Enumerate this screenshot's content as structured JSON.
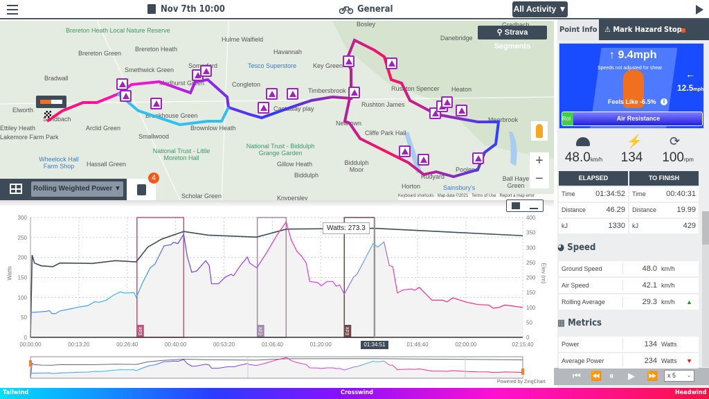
{
  "header": {
    "date": "Nov 7th 10:00",
    "activity_type": "General",
    "filter_label": "All Activity ▼"
  },
  "map": {
    "places": [
      "Brereton Heath Local Nature Reserve",
      "Brereton Green",
      "Brereton Heath",
      "Hulme Walfield",
      "Havannah",
      "Bosley",
      "Danebridge",
      "Gradbach",
      "Smethwick Green",
      "Medhurst Green",
      "Somerford",
      "Congleton",
      "Tesco Superstore",
      "Key Green",
      "Timbersbrook",
      "Rushton Spencer",
      "Heaton",
      "Rushton James",
      "Elworth",
      "Sandbach",
      "Ettiley Heath",
      "Lakemore Farm Park",
      "Bradwall",
      "Arclid Green",
      "Brookhouse Green",
      "Brownlow Heath",
      "Smallwood",
      "Castaway play",
      "Newtown",
      "Rudyard",
      "Poolend",
      "Meerbrook",
      "National Trust - Little Moreton Hall",
      "National Trust - Biddulph Grange Garden",
      "Wheelock Hall Farm Shop",
      "Hassall Green",
      "Gillow Heath",
      "Biddulph Moor",
      "Biddulph",
      "Horton",
      "Sainsbury's",
      "Ball Haye Green",
      "Scholar Green",
      "Cliffe Park Hall",
      "Knypersley"
    ],
    "strava_label": "Strava Segments",
    "logo_text": "MyWindSock",
    "zoom_in": "+",
    "zoom_out": "−",
    "attribution": [
      "Keyboard shortcuts",
      "Map data ©2021",
      "Terms of Use",
      "Report a map error"
    ],
    "metric_dropdown": "Rolling Weighted Power ▼",
    "hazard_badge": "4"
  },
  "chart_data": {
    "type": "line",
    "xlabel": "",
    "ylabel": "Watts",
    "y2label": "Elev (m)",
    "xlim": [
      0,
      8140
    ],
    "ylim": [
      0,
      300
    ],
    "y2lim": [
      0,
      400
    ],
    "x_ticks": [
      "00:00:00",
      "00:13:20",
      "00:26:40",
      "00:40:00",
      "00:53:20",
      "01:06:40",
      "01:20:00",
      "01:46:40",
      "02:00:00",
      "02:15:40"
    ],
    "x_tick_seconds": [
      0,
      800,
      1600,
      2400,
      3200,
      4000,
      4800,
      6400,
      7200,
      8140
    ],
    "y_ticks": [
      0,
      50,
      100,
      150,
      200,
      250,
      300
    ],
    "y2_ticks": [
      0,
      50,
      100,
      150,
      200,
      250,
      300,
      350,
      400
    ],
    "series": [
      {
        "name": "Watts",
        "color": "gradient",
        "points": [
          [
            0,
            62
          ],
          [
            256,
            65
          ],
          [
            314,
            67
          ],
          [
            352,
            60
          ],
          [
            410,
            59
          ],
          [
            486,
            66
          ],
          [
            716,
            73
          ],
          [
            792,
            76
          ],
          [
            945,
            79
          ],
          [
            1060,
            89
          ],
          [
            1137,
            88
          ],
          [
            1252,
            93
          ],
          [
            1367,
            105
          ],
          [
            1481,
            114
          ],
          [
            1558,
            111
          ],
          [
            1711,
            112
          ],
          [
            1749,
            100
          ],
          [
            1864,
            140
          ],
          [
            1979,
            174
          ],
          [
            2056,
            183
          ],
          [
            2209,
            229
          ],
          [
            2324,
            232
          ],
          [
            2362,
            238
          ],
          [
            2438,
            235
          ],
          [
            2534,
            258
          ],
          [
            2592,
            203
          ],
          [
            2668,
            163
          ],
          [
            2745,
            166
          ],
          [
            2898,
            192
          ],
          [
            2955,
            180
          ],
          [
            2994,
            134
          ],
          [
            3108,
            134
          ],
          [
            3223,
            151
          ],
          [
            3319,
            158
          ],
          [
            3357,
            154
          ],
          [
            3472,
            180
          ],
          [
            3587,
            201
          ],
          [
            3625,
            186
          ],
          [
            3740,
            174
          ],
          [
            3893,
            209
          ],
          [
            4085,
            258
          ],
          [
            4228,
            289
          ],
          [
            4312,
            244
          ],
          [
            4407,
            215
          ],
          [
            4483,
            203
          ],
          [
            4560,
            186
          ],
          [
            4617,
            140
          ],
          [
            4750,
            137
          ],
          [
            4808,
            129
          ],
          [
            4903,
            140
          ],
          [
            4998,
            140
          ],
          [
            5056,
            128
          ],
          [
            5113,
            131
          ],
          [
            5189,
            108
          ],
          [
            5342,
            151
          ],
          [
            5399,
            158
          ],
          [
            5666,
            235
          ],
          [
            5742,
            226
          ],
          [
            5846,
            239
          ],
          [
            5933,
            180
          ],
          [
            5991,
            177
          ],
          [
            6067,
            111
          ],
          [
            6162,
            119
          ],
          [
            6296,
            121
          ],
          [
            6353,
            118
          ],
          [
            6429,
            125
          ],
          [
            6639,
            93
          ],
          [
            6811,
            93
          ],
          [
            6887,
            89
          ],
          [
            6983,
            99
          ],
          [
            7212,
            88
          ],
          [
            7403,
            82
          ],
          [
            7575,
            81
          ],
          [
            7651,
            73
          ],
          [
            7746,
            75
          ],
          [
            7842,
            81
          ],
          [
            8089,
            76
          ],
          [
            8140,
            75
          ]
        ]
      },
      {
        "name": "Rolling Weighted Power",
        "color": "#3d4b59",
        "points": [
          [
            0,
            0
          ],
          [
            27,
            206
          ],
          [
            65,
            186
          ],
          [
            180,
            179
          ],
          [
            371,
            177
          ],
          [
            486,
            186
          ],
          [
            1022,
            185
          ],
          [
            1405,
            192
          ],
          [
            1749,
            189
          ],
          [
            1941,
            226
          ],
          [
            2171,
            246
          ],
          [
            2534,
            265
          ],
          [
            2936,
            256
          ],
          [
            3740,
            251
          ],
          [
            4085,
            265
          ],
          [
            4235,
            271
          ],
          [
            5685,
            273
          ],
          [
            8089,
            255
          ],
          [
            8140,
            254
          ]
        ]
      }
    ],
    "edit_ranges": [
      {
        "start": 1761,
        "end": 2534,
        "color": "#c0507a",
        "label": "Edit"
      },
      {
        "start": 3751,
        "end": 4228,
        "color": "#a08aa8",
        "label": "Edit"
      },
      {
        "start": 5189,
        "end": 5685,
        "color": "#6e4848",
        "label": "Edit"
      }
    ],
    "cursor": {
      "time_seconds": 5691,
      "label": "01:34:51"
    },
    "tooltip": "Watts: 273.3",
    "powered_by": "Powered by ZingChart"
  },
  "panel": {
    "tabs": [
      "Point Info",
      "Mark Hazard",
      "Stop"
    ],
    "wind": {
      "tail_speed": "9.4mph",
      "note": "Speeds not adjusted for shear",
      "cross_speed": "12.5",
      "cross_unit": "mph",
      "feels_like": "Feels Like -6.5%",
      "bar_left": "Rol",
      "bar_main": "Air Resistance"
    },
    "stats": [
      {
        "icon": "speedometer-icon",
        "value": "48.0",
        "unit": "km/h"
      },
      {
        "icon": "lightning-icon",
        "value": "134",
        "unit": ""
      },
      {
        "icon": "cadence-icon",
        "value": "100",
        "unit": "rpm"
      }
    ],
    "elapsed_header": "ELAPSED",
    "finish_header": "TO FINISH",
    "elapsed": [
      [
        "Time",
        "01:34:52"
      ],
      [
        "Distance",
        "46.29"
      ],
      [
        "kJ",
        "1330"
      ]
    ],
    "to_finish": [
      [
        "Time",
        "00:40:31"
      ],
      [
        "Distance",
        "19.99"
      ],
      [
        "kJ",
        "429"
      ]
    ],
    "speed_title": "Speed",
    "speed_rows": [
      [
        "Ground Speed",
        "48.0",
        "km/h",
        ""
      ],
      [
        "Air Speed",
        "42.1",
        "km/h",
        ""
      ],
      [
        "Rolling Average",
        "29.3",
        "km/h",
        "▲"
      ]
    ],
    "metrics_title": "Metrics",
    "metric_rows": [
      [
        "Power",
        "134",
        "Watts",
        ""
      ],
      [
        "Average Power",
        "234",
        "Watts",
        "▼"
      ]
    ],
    "playback_speed": "x 5"
  },
  "wind_legend": {
    "left": "Tailwind",
    "center": "Crosswind",
    "right": "Headwind"
  }
}
